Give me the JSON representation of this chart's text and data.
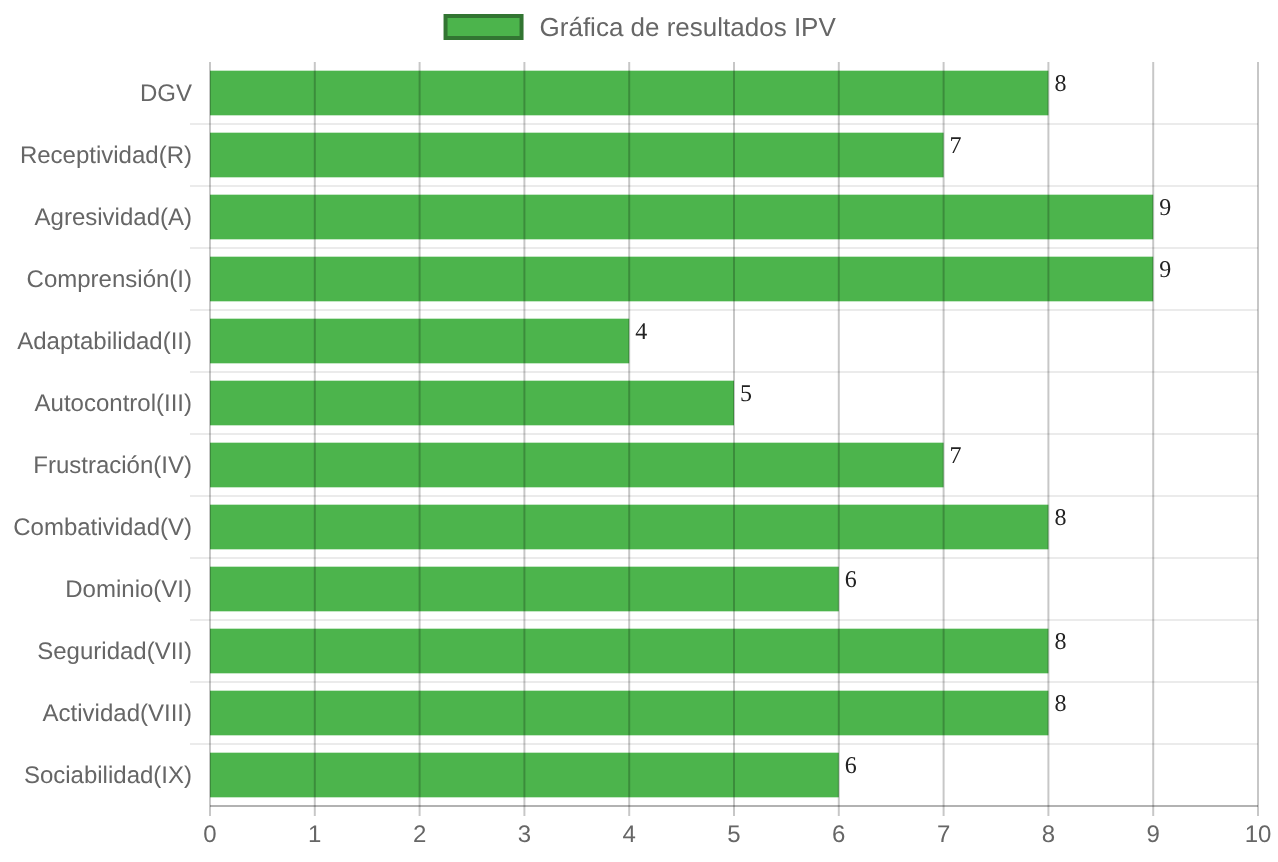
{
  "chart_data": {
    "type": "bar",
    "orientation": "horizontal",
    "categories": [
      "DGV",
      "Receptividad(R)",
      "Agresividad(A)",
      "Comprensión(I)",
      "Adaptabilidad(II)",
      "Autocontrol(III)",
      "Frustración(IV)",
      "Combatividad(V)",
      "Dominio(VI)",
      "Seguridad(VII)",
      "Actividad(VIII)",
      "Sociabilidad(IX)"
    ],
    "series": [
      {
        "name": "Gráfica de resultados IPV",
        "color": "#4cb44c",
        "values": [
          8,
          7,
          9,
          9,
          4,
          5,
          7,
          8,
          6,
          8,
          8,
          6
        ]
      }
    ],
    "xlim": [
      0,
      10
    ],
    "xticks": [
      0,
      1,
      2,
      3,
      4,
      5,
      6,
      7,
      8,
      9,
      10
    ],
    "grid": true,
    "legend": "top",
    "data_labels": true
  }
}
